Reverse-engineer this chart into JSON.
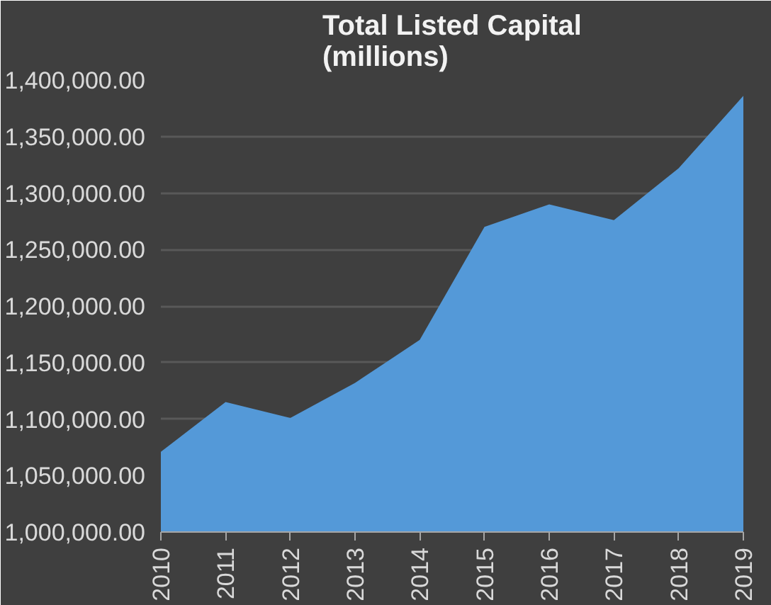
{
  "chart_data": {
    "type": "area",
    "title": "Total Listed Capital\n(millions)",
    "categories": [
      "2010",
      "2011",
      "2012",
      "2013",
      "2014",
      "2015",
      "2016",
      "2017",
      "2018",
      "2019"
    ],
    "series": [
      {
        "color": "#5499d8",
        "values": [
          1071000,
          1115000,
          1101000,
          1132000,
          1170000,
          1270000,
          1290000,
          1276000,
          1322000,
          1386000
        ]
      }
    ],
    "ylim": [
      1000000,
      1400000
    ],
    "yticks": [
      {
        "value": 1000000,
        "label": "1,000,000.00"
      },
      {
        "value": 1050000,
        "label": "1,050,000.00"
      },
      {
        "value": 1100000,
        "label": "1,100,000.00"
      },
      {
        "value": 1150000,
        "label": "1,150,000.00"
      },
      {
        "value": 1200000,
        "label": "1,200,000.00"
      },
      {
        "value": 1250000,
        "label": "1,250,000.00"
      },
      {
        "value": 1300000,
        "label": "1,300,000.00"
      },
      {
        "value": 1350000,
        "label": "1,350,000.00"
      },
      {
        "value": 1400000,
        "label": "1,400,000.00"
      }
    ],
    "grid": "y"
  }
}
